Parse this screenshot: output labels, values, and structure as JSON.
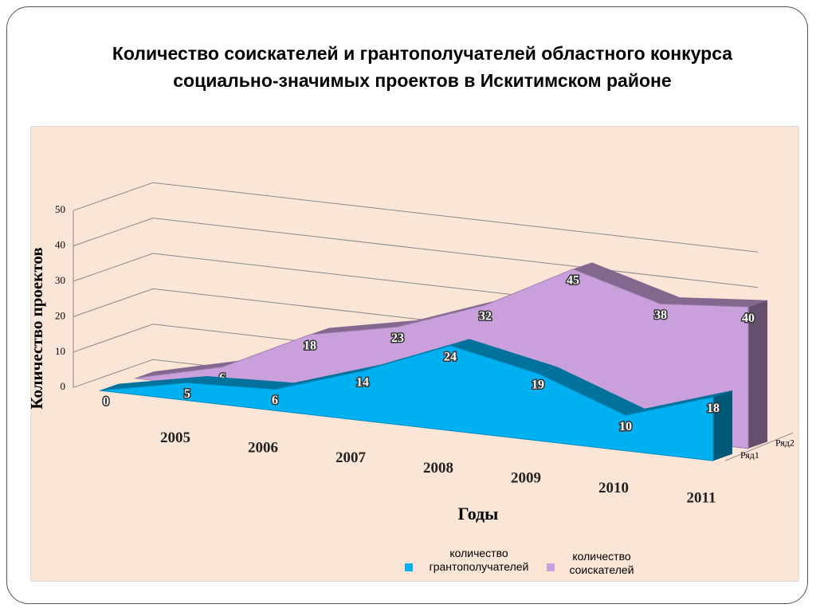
{
  "chart_data": {
    "type": "area3d",
    "title": "Количество соискателей и грантополучателей областного конкурса социально-значимых проектов в Искитимском районе",
    "y_label": "Количество проектов",
    "x_label": "Годы",
    "categories": [
      null,
      "2005",
      "2006",
      "2007",
      "2008",
      "2009",
      "2010",
      "2011"
    ],
    "series": [
      {
        "name": "количество грантополучателей",
        "color": "#00b0f0",
        "values": [
          0,
          5,
          6,
          14,
          24,
          19,
          10,
          18
        ]
      },
      {
        "name": "количество соискателей",
        "color": "#c9a0dc",
        "values": [
          0,
          6,
          18,
          23,
          32,
          45,
          38,
          40
        ]
      }
    ],
    "depth_labels": [
      "Ряд1",
      "Ряд2"
    ],
    "ylim": [
      0,
      50
    ],
    "yticks": [
      0,
      10,
      20,
      30,
      40,
      50
    ],
    "grid": true,
    "legend": "bottom"
  }
}
